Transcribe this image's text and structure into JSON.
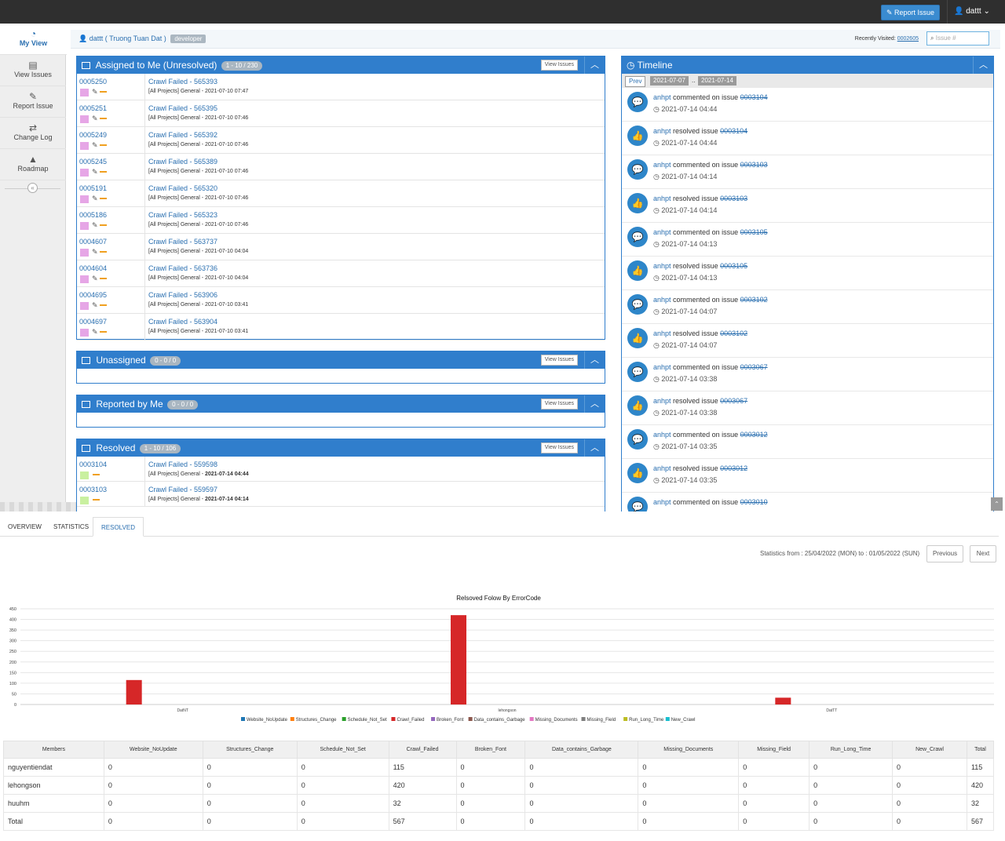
{
  "topbar": {
    "report_label": "Report Issue",
    "user_label": "dattt"
  },
  "sidebar": {
    "items": [
      {
        "label": "My View",
        "icon": "dashboard-icon"
      },
      {
        "label": "View Issues",
        "icon": "list-icon"
      },
      {
        "label": "Report Issue",
        "icon": "edit-icon"
      },
      {
        "label": "Change Log",
        "icon": "retweet-icon"
      },
      {
        "label": "Roadmap",
        "icon": "road-icon"
      }
    ],
    "collapse_glyph": "«"
  },
  "breadcrumb": {
    "user": "dattt ( Truong Tuan Dat )",
    "role": "developer",
    "recent_label": "Recently Visited:",
    "recent_issue": "0002605",
    "search_placeholder": "Issue #"
  },
  "assigned": {
    "title": "Assigned to Me (Unresolved)",
    "count": "1 - 10 / 230",
    "view_label": "View Issues",
    "rows": [
      {
        "id": "0005250",
        "summary": "Crawl Failed - 565393",
        "meta": "[All Projects] General - 2021-07-10 07:47"
      },
      {
        "id": "0005251",
        "summary": "Crawl Failed - 565395",
        "meta": "[All Projects] General - 2021-07-10 07:46"
      },
      {
        "id": "0005249",
        "summary": "Crawl Failed - 565392",
        "meta": "[All Projects] General - 2021-07-10 07:46"
      },
      {
        "id": "0005245",
        "summary": "Crawl Failed - 565389",
        "meta": "[All Projects] General - 2021-07-10 07:46"
      },
      {
        "id": "0005191",
        "summary": "Crawl Failed - 565320",
        "meta": "[All Projects] General - 2021-07-10 07:46"
      },
      {
        "id": "0005186",
        "summary": "Crawl Failed - 565323",
        "meta": "[All Projects] General - 2021-07-10 07:46"
      },
      {
        "id": "0004607",
        "summary": "Crawl Failed - 563737",
        "meta": "[All Projects] General - 2021-07-10 04:04"
      },
      {
        "id": "0004604",
        "summary": "Crawl Failed - 563736",
        "meta": "[All Projects] General - 2021-07-10 04:04"
      },
      {
        "id": "0004695",
        "summary": "Crawl Failed - 563906",
        "meta": "[All Projects] General - 2021-07-10 03:41"
      },
      {
        "id": "0004697",
        "summary": "Crawl Failed - 563904",
        "meta": "[All Projects] General - 2021-07-10 03:41"
      }
    ]
  },
  "unassigned": {
    "title": "Unassigned",
    "count": "0 - 0 / 0",
    "view_label": "View Issues"
  },
  "reported": {
    "title": "Reported by Me",
    "count": "0 - 0 / 0",
    "view_label": "View Issues"
  },
  "resolved": {
    "title": "Resolved",
    "count": "1 - 10 / 106",
    "view_label": "View Issues",
    "rows": [
      {
        "id": "0003104",
        "summary": "Crawl Failed - 559598",
        "meta_prefix": "[All Projects] General - ",
        "meta_date": "2021-07-14 04:44"
      },
      {
        "id": "0003103",
        "summary": "Crawl Failed - 559597",
        "meta_prefix": "[All Projects] General - ",
        "meta_date": "2021-07-14 04:14"
      }
    ]
  },
  "timeline": {
    "title": "Timeline",
    "prev_label": "Prev",
    "date_from": "2021-07-07",
    "date_sep": "..",
    "date_to": "2021-07-14",
    "items": [
      {
        "kind": "comment",
        "user": "anhpt",
        "action": "commented on issue",
        "issue": "0003104",
        "time": "2021-07-14 04:44"
      },
      {
        "kind": "resolve",
        "user": "anhpt",
        "action": "resolved issue",
        "issue": "0003104",
        "time": "2021-07-14 04:44"
      },
      {
        "kind": "comment",
        "user": "anhpt",
        "action": "commented on issue",
        "issue": "0003103",
        "time": "2021-07-14 04:14"
      },
      {
        "kind": "resolve",
        "user": "anhpt",
        "action": "resolved issue",
        "issue": "0003103",
        "time": "2021-07-14 04:14"
      },
      {
        "kind": "comment",
        "user": "anhpt",
        "action": "commented on issue",
        "issue": "0003105",
        "time": "2021-07-14 04:13"
      },
      {
        "kind": "resolve",
        "user": "anhpt",
        "action": "resolved issue",
        "issue": "0003105",
        "time": "2021-07-14 04:13"
      },
      {
        "kind": "comment",
        "user": "anhpt",
        "action": "commented on issue",
        "issue": "0003102",
        "time": "2021-07-14 04:07"
      },
      {
        "kind": "resolve",
        "user": "anhpt",
        "action": "resolved issue",
        "issue": "0003102",
        "time": "2021-07-14 04:07"
      },
      {
        "kind": "comment",
        "user": "anhpt",
        "action": "commented on issue",
        "issue": "0003067",
        "time": "2021-07-14 03:38"
      },
      {
        "kind": "resolve",
        "user": "anhpt",
        "action": "resolved issue",
        "issue": "0003067",
        "time": "2021-07-14 03:38"
      },
      {
        "kind": "comment",
        "user": "anhpt",
        "action": "commented on issue",
        "issue": "0003012",
        "time": "2021-07-14 03:35"
      },
      {
        "kind": "resolve",
        "user": "anhpt",
        "action": "resolved issue",
        "issue": "0003012",
        "time": "2021-07-14 03:35"
      },
      {
        "kind": "comment",
        "user": "anhpt",
        "action": "commented on issue",
        "issue": "0003010",
        "time": ""
      }
    ]
  },
  "tabs": [
    {
      "label": "OVERVIEW",
      "active": false
    },
    {
      "label": "STATISTICS",
      "active": false
    },
    {
      "label": "RESOLVED",
      "active": true
    }
  ],
  "stats": {
    "range_text": "Statistics from : 25/04/2022 (MON) to : 01/05/2022 (SUN)",
    "prev_label": "Previous",
    "next_label": "Next"
  },
  "chart_data": {
    "type": "bar",
    "title": "Relsoved Folow By ErrorCode",
    "categories": [
      "DatNT",
      "lehongson",
      "DatTT"
    ],
    "ylim": [
      0,
      450
    ],
    "yticks": [
      0,
      50,
      100,
      150,
      200,
      250,
      300,
      350,
      400,
      450
    ],
    "grid": true,
    "legend_position": "bottom",
    "series": [
      {
        "name": "Website_NoUpdate",
        "color": "#1f77b4",
        "values": [
          0,
          0,
          0
        ]
      },
      {
        "name": "Structures_Change",
        "color": "#ff7f0e",
        "values": [
          0,
          0,
          0
        ]
      },
      {
        "name": "Schedule_Not_Set",
        "color": "#2ca02c",
        "values": [
          0,
          0,
          0
        ]
      },
      {
        "name": "Crawl_Failed",
        "color": "#d62728",
        "values": [
          115,
          420,
          32
        ]
      },
      {
        "name": "Broken_Font",
        "color": "#9467bd",
        "values": [
          0,
          0,
          0
        ]
      },
      {
        "name": "Data_contains_Garbage",
        "color": "#8c564b",
        "values": [
          0,
          0,
          0
        ]
      },
      {
        "name": "Missing_Documents",
        "color": "#e377c2",
        "values": [
          0,
          0,
          0
        ]
      },
      {
        "name": "Missing_Field",
        "color": "#7f7f7f",
        "values": [
          0,
          0,
          0
        ]
      },
      {
        "name": "Run_Long_Time",
        "color": "#bcbd22",
        "values": [
          0,
          0,
          0
        ]
      },
      {
        "name": "New_Crawl",
        "color": "#17becf",
        "values": [
          0,
          0,
          0
        ]
      }
    ]
  },
  "table": {
    "headers": [
      "Members",
      "Website_NoUpdate",
      "Structures_Change",
      "Schedule_Not_Set",
      "Crawl_Failed",
      "Broken_Font",
      "Data_contains_Garbage",
      "Missing_Documents",
      "Missing_Field",
      "Run_Long_Time",
      "New_Crawl",
      "Total"
    ],
    "rows": [
      [
        "nguyentiendat",
        "0",
        "0",
        "0",
        "115",
        "0",
        "0",
        "0",
        "0",
        "0",
        "0",
        "115"
      ],
      [
        "lehongson",
        "0",
        "0",
        "0",
        "420",
        "0",
        "0",
        "0",
        "0",
        "0",
        "0",
        "420"
      ],
      [
        "huuhm",
        "0",
        "0",
        "0",
        "32",
        "0",
        "0",
        "0",
        "0",
        "0",
        "0",
        "32"
      ],
      [
        "Total",
        "0",
        "0",
        "0",
        "567",
        "0",
        "0",
        "0",
        "0",
        "0",
        "0",
        "567"
      ]
    ]
  }
}
